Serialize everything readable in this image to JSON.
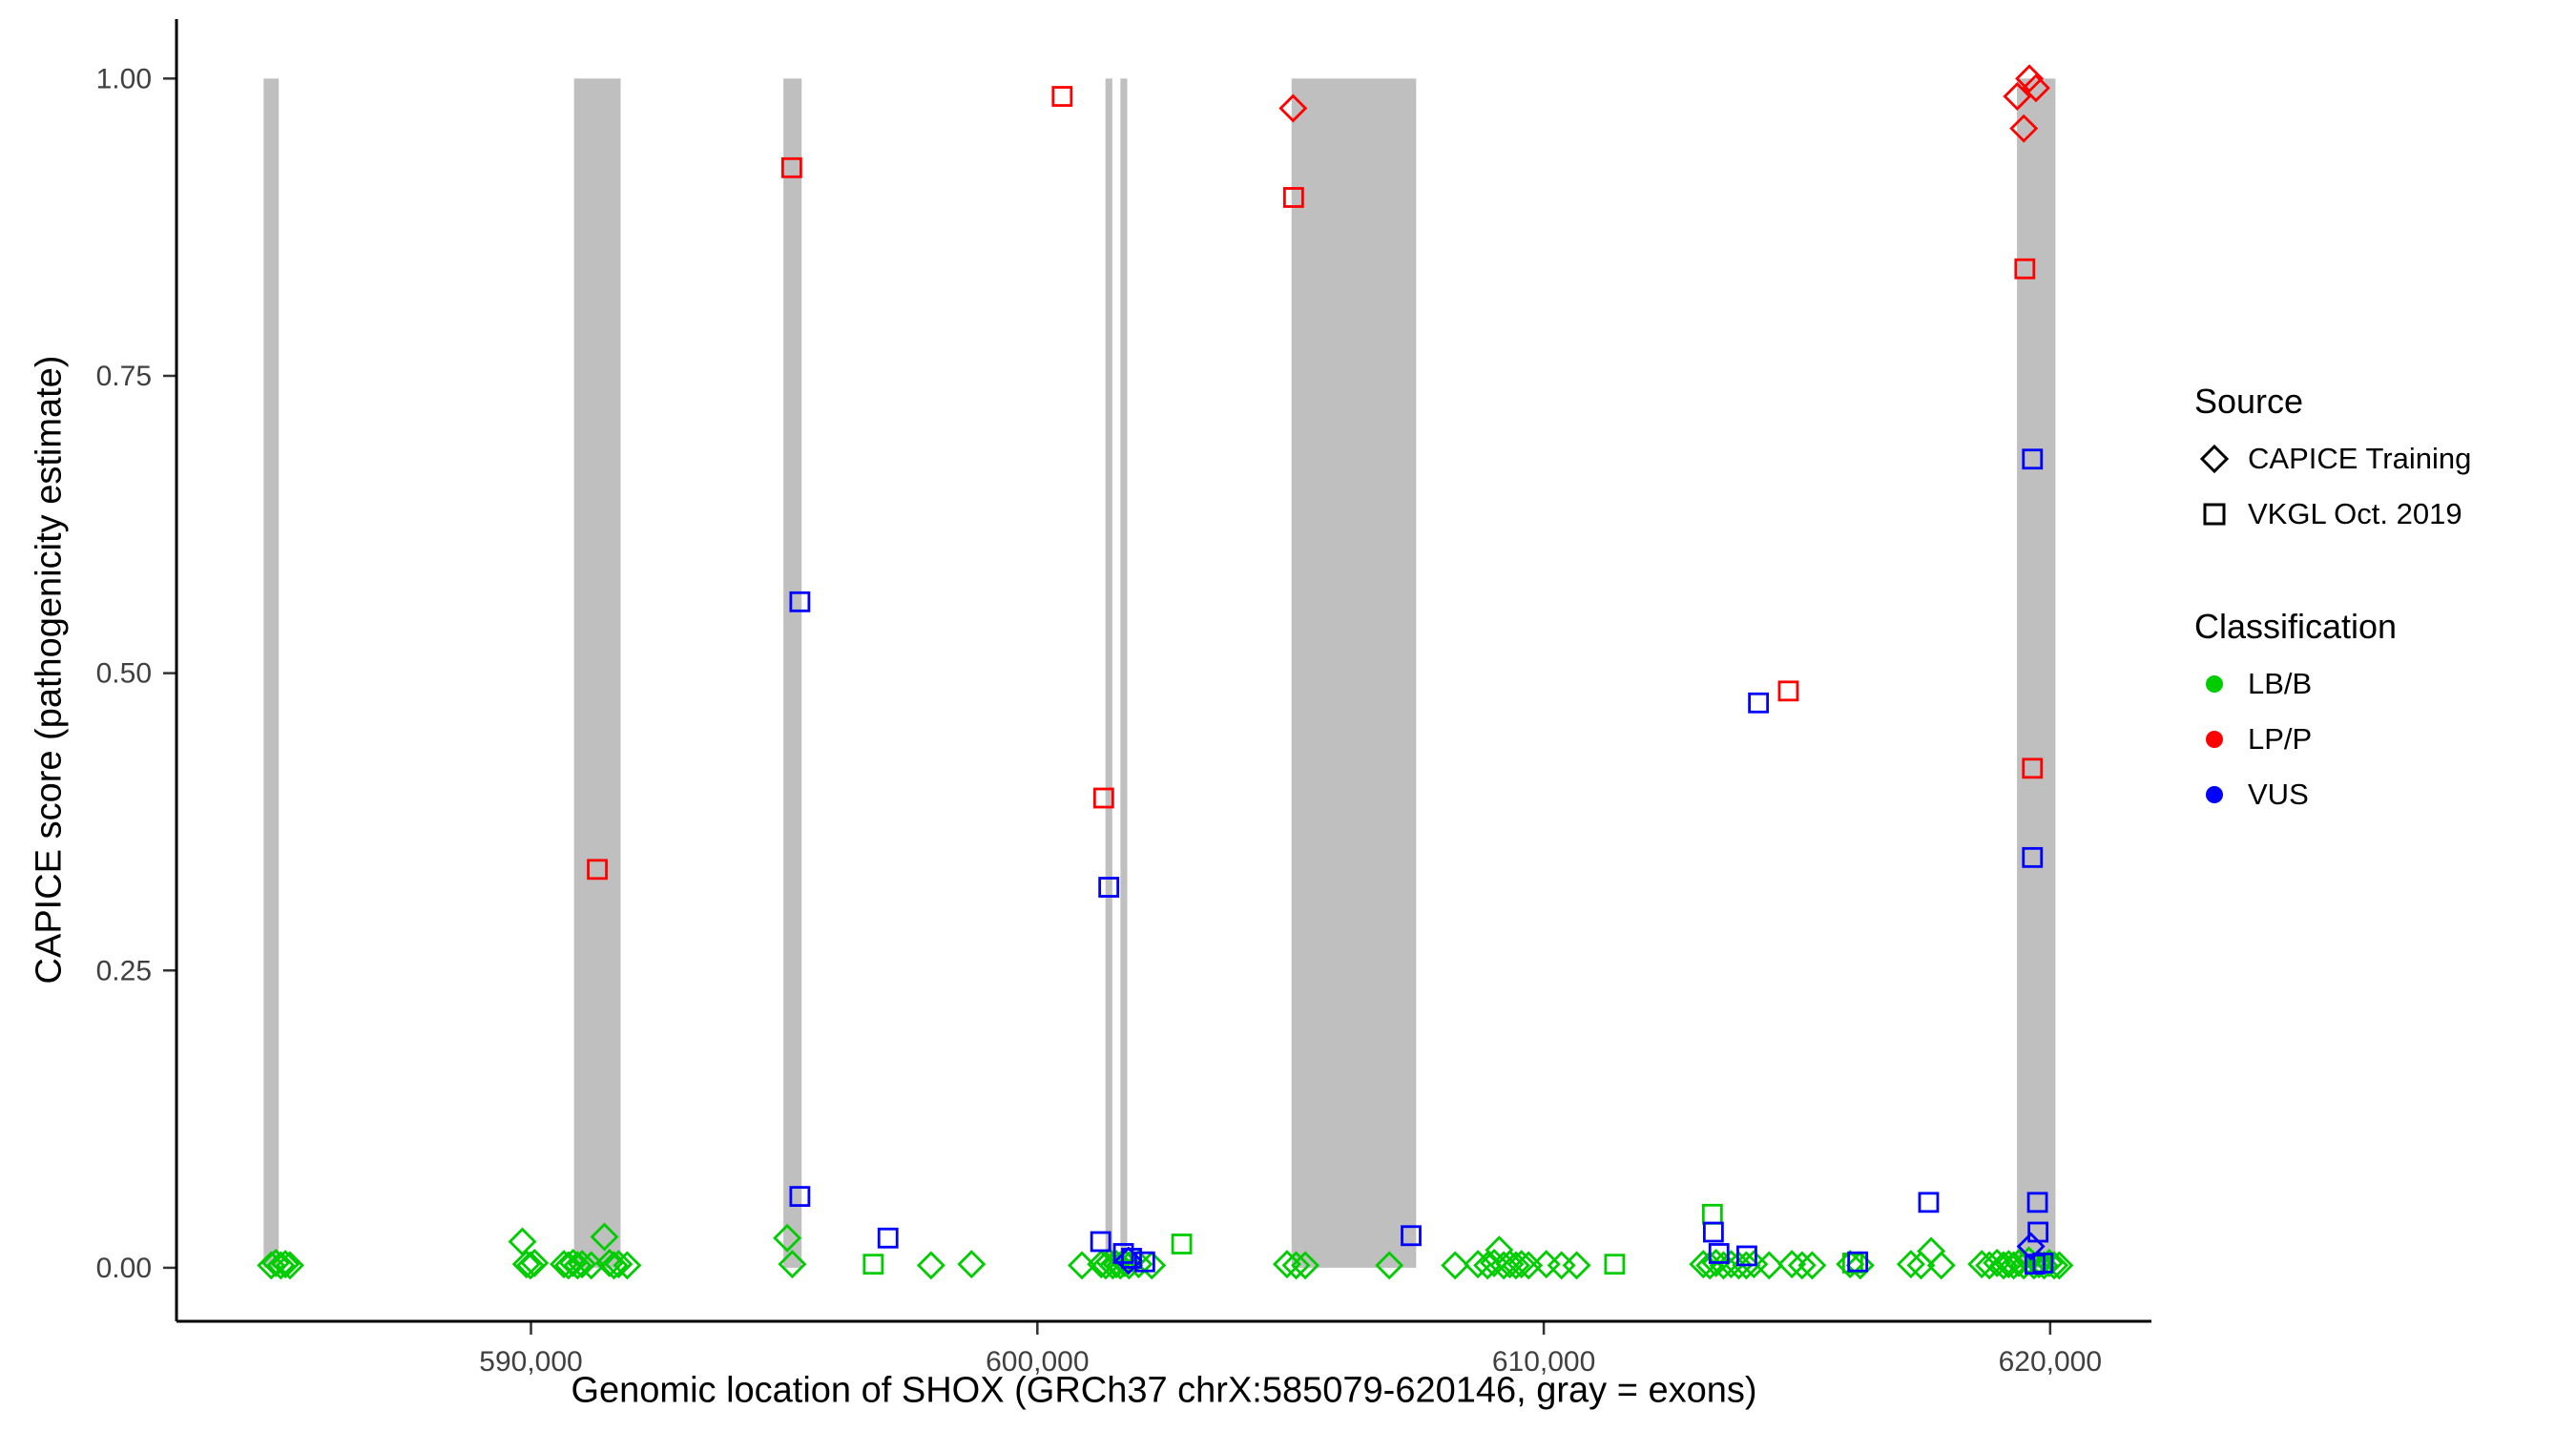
{
  "figure": {
    "x_axis_title": "Genomic location of SHOX (GRCh37 chrX:585079-620146, gray = exons)",
    "y_axis_title": "CAPICE score (pathogenicity estimate)"
  },
  "legend": {
    "source": {
      "title": "Source",
      "items": [
        {
          "label": "CAPICE Training",
          "shape": "diamond"
        },
        {
          "label": "VKGL Oct. 2019",
          "shape": "square"
        }
      ]
    },
    "classification": {
      "title": "Classification",
      "items": [
        {
          "label": "LB/B",
          "color": "#00CD00"
        },
        {
          "label": "LP/P",
          "color": "#FF0000"
        },
        {
          "label": "VUS",
          "color": "#0000FF"
        }
      ]
    }
  },
  "chart_data": {
    "type": "scatter",
    "title": "",
    "xlabel": "Genomic location of SHOX (GRCh37 chrX:585079-620146, gray = exons)",
    "ylabel": "CAPICE score (pathogenicity estimate)",
    "xlim": [
      583000,
      622000
    ],
    "ylim": [
      -0.045,
      1.05
    ],
    "x_ticks": [
      {
        "value": 590000,
        "label": "590,000"
      },
      {
        "value": 600000,
        "label": "600,000"
      },
      {
        "value": 610000,
        "label": "610,000"
      },
      {
        "value": 620000,
        "label": "620,000"
      }
    ],
    "y_ticks": [
      {
        "value": 0.0,
        "label": "0.00"
      },
      {
        "value": 0.25,
        "label": "0.25"
      },
      {
        "value": 0.5,
        "label": "0.50"
      },
      {
        "value": 0.75,
        "label": "0.75"
      },
      {
        "value": 1.0,
        "label": "1.00"
      }
    ],
    "exons": {
      "color": "#BFBFBF",
      "note": "gray vertical bands = exons, spanning CAPICE score 0 to 1",
      "regions": [
        [
          584720,
          585020
        ],
        [
          590850,
          591770
        ],
        [
          594985,
          595345
        ],
        [
          601345,
          601480
        ],
        [
          601640,
          601775
        ],
        [
          605020,
          607480
        ],
        [
          619345,
          620105
        ]
      ]
    },
    "series": [
      {
        "name": "LB/B - CAPICE Training",
        "classification": "LB/B",
        "source": "CAPICE Training",
        "shape": "diamond",
        "color": "#00CD00",
        "points": [
          [
            584870,
            0.002
          ],
          [
            584960,
            0.004
          ],
          [
            585060,
            0.002
          ],
          [
            585150,
            0.003
          ],
          [
            585240,
            0.002
          ],
          [
            589830,
            0.022
          ],
          [
            589910,
            0.003
          ],
          [
            589990,
            0.002
          ],
          [
            590070,
            0.004
          ],
          [
            590650,
            0.003
          ],
          [
            590740,
            0.002
          ],
          [
            590830,
            0.004
          ],
          [
            590920,
            0.002
          ],
          [
            591010,
            0.003
          ],
          [
            591190,
            0.002
          ],
          [
            591450,
            0.026
          ],
          [
            591550,
            0.004
          ],
          [
            591640,
            0.002
          ],
          [
            591730,
            0.003
          ],
          [
            591900,
            0.002
          ],
          [
            595060,
            0.025
          ],
          [
            595160,
            0.003
          ],
          [
            597900,
            0.002
          ],
          [
            598700,
            0.003
          ],
          [
            600880,
            0.002
          ],
          [
            601260,
            0.003
          ],
          [
            601350,
            0.002
          ],
          [
            601420,
            0.005
          ],
          [
            601490,
            0.002
          ],
          [
            601560,
            0.003
          ],
          [
            601640,
            0.002
          ],
          [
            601720,
            0.004
          ],
          [
            601810,
            0.002
          ],
          [
            602000,
            0.003
          ],
          [
            602260,
            0.002
          ],
          [
            604930,
            0.003
          ],
          [
            605110,
            0.002
          ],
          [
            605290,
            0.002
          ],
          [
            606950,
            0.002
          ],
          [
            608250,
            0.002
          ],
          [
            608700,
            0.003
          ],
          [
            608890,
            0.002
          ],
          [
            609020,
            0.004
          ],
          [
            609120,
            0.015
          ],
          [
            609210,
            0.002
          ],
          [
            609330,
            0.003
          ],
          [
            609450,
            0.002
          ],
          [
            609560,
            0.003
          ],
          [
            609700,
            0.002
          ],
          [
            610050,
            0.003
          ],
          [
            610350,
            0.002
          ],
          [
            610650,
            0.002
          ],
          [
            613150,
            0.003
          ],
          [
            613280,
            0.002
          ],
          [
            613400,
            0.004
          ],
          [
            613550,
            0.002
          ],
          [
            613700,
            0.003
          ],
          [
            613850,
            0.002
          ],
          [
            614000,
            0.002
          ],
          [
            614150,
            0.003
          ],
          [
            614450,
            0.002
          ],
          [
            614900,
            0.003
          ],
          [
            615100,
            0.002
          ],
          [
            615300,
            0.002
          ],
          [
            616050,
            0.003
          ],
          [
            616250,
            0.002
          ],
          [
            617250,
            0.003
          ],
          [
            617450,
            0.002
          ],
          [
            617650,
            0.014
          ],
          [
            617850,
            0.002
          ],
          [
            618650,
            0.003
          ],
          [
            618800,
            0.002
          ],
          [
            618950,
            0.004
          ],
          [
            619080,
            0.002
          ],
          [
            619180,
            0.003
          ],
          [
            619280,
            0.002
          ],
          [
            619380,
            0.004
          ],
          [
            619480,
            0.002
          ],
          [
            619580,
            0.006
          ],
          [
            619680,
            0.002
          ],
          [
            619780,
            0.003
          ],
          [
            619880,
            0.002
          ],
          [
            619980,
            0.004
          ],
          [
            620080,
            0.002
          ],
          [
            620180,
            0.002
          ]
        ]
      },
      {
        "name": "LB/B - VKGL Oct. 2019",
        "classification": "LB/B",
        "source": "VKGL Oct. 2019",
        "shape": "square",
        "color": "#00CD00",
        "points": [
          [
            596760,
            0.003
          ],
          [
            602850,
            0.02
          ],
          [
            611400,
            0.003
          ],
          [
            613330,
            0.045
          ],
          [
            616100,
            0.004
          ]
        ]
      },
      {
        "name": "VUS - CAPICE Training",
        "classification": "VUS",
        "source": "CAPICE Training",
        "shape": "diamond",
        "color": "#0000FF",
        "points": [
          [
            601800,
            0.006
          ],
          [
            619620,
            0.018
          ]
        ]
      },
      {
        "name": "VUS - VKGL Oct. 2019",
        "classification": "VUS",
        "source": "VKGL Oct. 2019",
        "shape": "square",
        "color": "#0000FF",
        "points": [
          [
            595310,
            0.56
          ],
          [
            619650,
            0.68
          ],
          [
            614240,
            0.475
          ],
          [
            601410,
            0.32
          ],
          [
            619650,
            0.345
          ],
          [
            595310,
            0.06
          ],
          [
            619750,
            0.055
          ],
          [
            597050,
            0.025
          ],
          [
            601250,
            0.022
          ],
          [
            607380,
            0.027
          ],
          [
            617600,
            0.055
          ],
          [
            619760,
            0.03
          ],
          [
            613350,
            0.03
          ],
          [
            613460,
            0.012
          ],
          [
            614010,
            0.01
          ],
          [
            601700,
            0.012
          ],
          [
            601860,
            0.008
          ],
          [
            616200,
            0.005
          ],
          [
            619700,
            0.003
          ],
          [
            619860,
            0.004
          ],
          [
            602120,
            0.005
          ]
        ]
      },
      {
        "name": "LP/P - CAPICE Training",
        "classification": "LP/P",
        "source": "CAPICE Training",
        "shape": "diamond",
        "color": "#FF0000",
        "points": [
          [
            605050,
            0.975
          ],
          [
            619350,
            0.985
          ],
          [
            619590,
            1.0
          ],
          [
            619720,
            0.992
          ],
          [
            619480,
            0.958
          ]
        ]
      },
      {
        "name": "LP/P - VKGL Oct. 2019",
        "classification": "LP/P",
        "source": "VKGL Oct. 2019",
        "shape": "square",
        "color": "#FF0000",
        "points": [
          [
            600490,
            0.985
          ],
          [
            595150,
            0.925
          ],
          [
            605060,
            0.9
          ],
          [
            619500,
            0.84
          ],
          [
            591310,
            0.335
          ],
          [
            601310,
            0.395
          ],
          [
            614830,
            0.485
          ],
          [
            619650,
            0.42
          ]
        ]
      }
    ]
  }
}
